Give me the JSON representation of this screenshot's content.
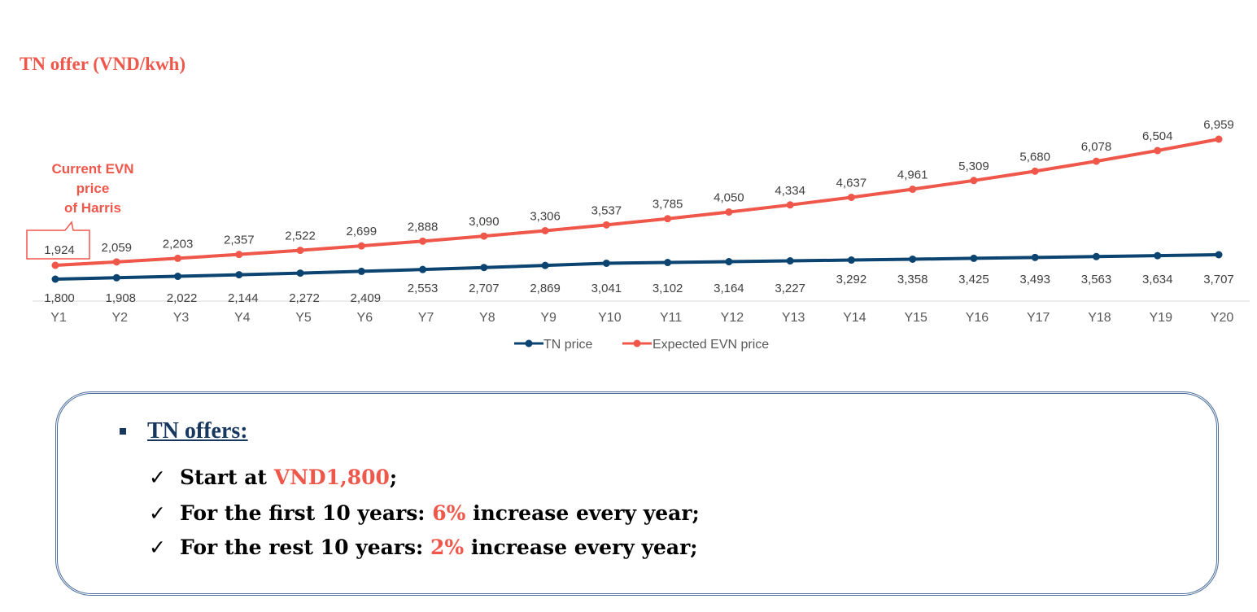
{
  "title": "TN offer (VND/kwh)",
  "callout": {
    "lines": [
      "Current EVN",
      "price",
      "of Harris"
    ]
  },
  "colors": {
    "tn": "#0b4470",
    "evn": "#f0574b",
    "accent": "#f0574b",
    "heading": "#17375e"
  },
  "chart_data": {
    "type": "line",
    "categories": [
      "Y1",
      "Y2",
      "Y3",
      "Y4",
      "Y5",
      "Y6",
      "Y7",
      "Y8",
      "Y9",
      "Y10",
      "Y11",
      "Y12",
      "Y13",
      "Y14",
      "Y15",
      "Y16",
      "Y17",
      "Y18",
      "Y19",
      "Y20"
    ],
    "series": [
      {
        "name": "TN price",
        "color": "#0b4470",
        "values": [
          1800,
          1908,
          2022,
          2144,
          2272,
          2409,
          2553,
          2707,
          2869,
          3041,
          3102,
          3164,
          3227,
          3292,
          3358,
          3425,
          3493,
          3563,
          3634,
          3707
        ],
        "labels": [
          "1,800",
          "1,908",
          "2,022",
          "2,144",
          "2,272",
          "2,409",
          "2,553",
          "2,707",
          "2,869",
          "3,041",
          "3,102",
          "3,164",
          "3,227",
          "3,292",
          "3,358",
          "3,425",
          "3,493",
          "3,563",
          "3,634",
          "3,707"
        ]
      },
      {
        "name": "Expected EVN price",
        "color": "#f0574b",
        "values": [
          1924,
          2059,
          2203,
          2357,
          2522,
          2699,
          2888,
          3090,
          3306,
          3537,
          3785,
          4050,
          4334,
          4637,
          4961,
          5309,
          5680,
          6078,
          6504,
          6959
        ],
        "labels": [
          "1,924",
          "2,059",
          "2,203",
          "2,357",
          "2,522",
          "2,699",
          "2,888",
          "3,090",
          "3,306",
          "3,537",
          "3,785",
          "4,050",
          "4,334",
          "4,637",
          "4,961",
          "5,309",
          "5,680",
          "6,078",
          "6,504",
          "6,959"
        ]
      }
    ],
    "legend_position": "bottom",
    "grid": false
  },
  "offers": {
    "heading": "TN offers:",
    "items": [
      {
        "prefix": "Start at ",
        "highlight": "VND1,800",
        "suffix": ";"
      },
      {
        "prefix": "For the first 10 years: ",
        "highlight": "6%",
        "suffix": " increase every year;"
      },
      {
        "prefix": "For the rest 10 years: ",
        "highlight": "2%",
        "suffix": " increase every year;"
      }
    ]
  }
}
